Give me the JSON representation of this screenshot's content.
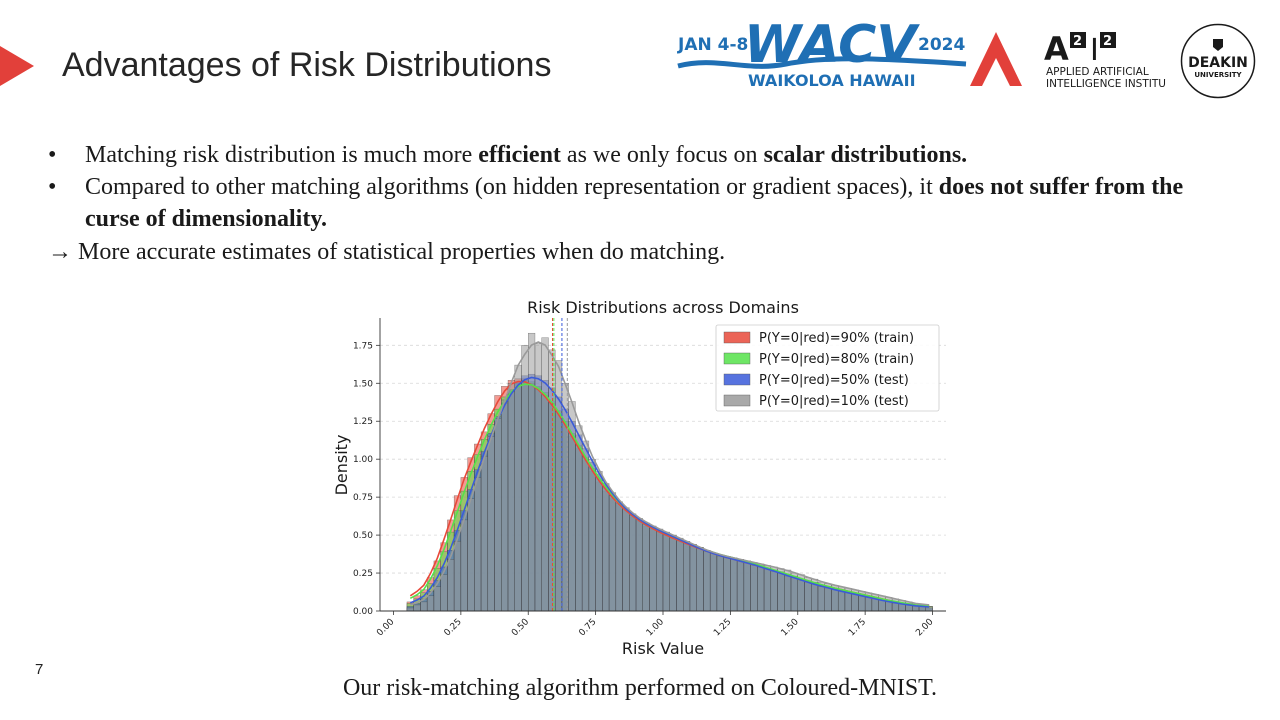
{
  "slide": {
    "title": "Advantages of Risk Distributions",
    "number": "7",
    "caption": "Our risk-matching algorithm performed on Coloured-MNIST."
  },
  "logos": {
    "wacv": {
      "dates": "JAN 4-8",
      "name": "WACV",
      "year": "2024",
      "location": "WAIKOLOA HAWAII"
    },
    "a2i2": {
      "mark": "A",
      "sup1": "2",
      "sep": "I",
      "sup2": "2",
      "line1": "APPLIED ARTIFICIAL",
      "line2": "INTELLIGENCE INSTITUTE"
    },
    "deakin": {
      "line1": "DEAKIN",
      "line2": "UNIVERSITY"
    }
  },
  "bullets": [
    {
      "marker": "•",
      "parts": [
        {
          "text": "Matching risk distribution is much more ",
          "bold": false
        },
        {
          "text": "efficient",
          "bold": true
        },
        {
          "text": " as we only focus on ",
          "bold": false
        },
        {
          "text": "scalar distributions.",
          "bold": true
        }
      ]
    },
    {
      "marker": "•",
      "parts": [
        {
          "text": "Compared to other matching algorithms (on hidden representation or gradient spaces), it ",
          "bold": false
        },
        {
          "text": "does not suffer from the curse of dimensionality.",
          "bold": true
        }
      ]
    }
  ],
  "conclusion": {
    "arrow": "→",
    "text": "More accurate estimates of statistical properties when do matching."
  },
  "colors": {
    "accent": "#e2403a",
    "wacv_blue": "#1f6fb4",
    "red": "#e8493a",
    "green": "#55e24a",
    "blue": "#3a5bd9",
    "gray": "#9a9a9a",
    "overlap": "#4d6f80"
  },
  "chart_data": {
    "type": "bar",
    "title": "Risk Distributions across Domains",
    "xlabel": "Risk Value",
    "ylabel": "Density",
    "xlim": [
      -0.05,
      2.05
    ],
    "ylim": [
      0,
      1.93
    ],
    "xticks": [
      "0.00",
      "0.25",
      "0.50",
      "0.75",
      "1.00",
      "1.25",
      "1.50",
      "1.75",
      "2.00"
    ],
    "yticks": [
      "0.00",
      "0.25",
      "0.50",
      "0.75",
      "1.00",
      "1.25",
      "1.50",
      "1.75"
    ],
    "grid": "horizontal dashed",
    "legend": "top-right",
    "bin_edges_start": 0.05,
    "bin_width": 0.025,
    "series": [
      {
        "name": "P(Y=0|red)=90%  (train)",
        "color": "#e8493a",
        "mean": 0.59,
        "values": [
          0.06,
          0.1,
          0.14,
          0.22,
          0.33,
          0.45,
          0.6,
          0.76,
          0.88,
          1.01,
          1.1,
          1.18,
          1.3,
          1.42,
          1.48,
          1.52,
          1.53,
          1.53,
          1.5,
          1.47,
          1.42,
          1.37,
          1.3,
          1.23,
          1.15,
          1.07,
          0.99,
          0.92,
          0.85,
          0.79,
          0.74,
          0.7,
          0.66,
          0.62,
          0.59,
          0.56,
          0.54,
          0.52,
          0.5,
          0.48,
          0.46,
          0.44,
          0.43,
          0.41,
          0.39,
          0.38,
          0.36,
          0.35,
          0.34,
          0.33,
          0.32,
          0.3,
          0.29,
          0.28,
          0.27,
          0.25,
          0.24,
          0.22,
          0.21,
          0.2,
          0.18,
          0.17,
          0.16,
          0.15,
          0.14,
          0.13,
          0.12,
          0.11,
          0.1,
          0.09,
          0.08,
          0.07,
          0.06,
          0.05,
          0.04,
          0.04,
          0.03,
          0.03
        ]
      },
      {
        "name": "P(Y=0|red)=80% (train)",
        "color": "#55e24a",
        "mean": 0.595,
        "values": [
          0.05,
          0.08,
          0.12,
          0.18,
          0.28,
          0.39,
          0.52,
          0.66,
          0.79,
          0.92,
          1.03,
          1.13,
          1.23,
          1.33,
          1.41,
          1.46,
          1.5,
          1.52,
          1.51,
          1.48,
          1.44,
          1.38,
          1.32,
          1.25,
          1.17,
          1.09,
          1.01,
          0.94,
          0.87,
          0.81,
          0.76,
          0.71,
          0.67,
          0.63,
          0.6,
          0.57,
          0.55,
          0.53,
          0.51,
          0.49,
          0.47,
          0.45,
          0.43,
          0.42,
          0.4,
          0.38,
          0.37,
          0.36,
          0.35,
          0.34,
          0.33,
          0.31,
          0.3,
          0.28,
          0.27,
          0.26,
          0.24,
          0.23,
          0.21,
          0.2,
          0.19,
          0.17,
          0.16,
          0.15,
          0.14,
          0.13,
          0.12,
          0.11,
          0.1,
          0.09,
          0.08,
          0.07,
          0.06,
          0.05,
          0.05,
          0.04,
          0.03,
          0.03
        ]
      },
      {
        "name": "P(Y=0|red)=50% (test)",
        "color": "#3a5bd9",
        "mean": 0.625,
        "values": [
          0.03,
          0.05,
          0.08,
          0.13,
          0.2,
          0.29,
          0.4,
          0.53,
          0.66,
          0.8,
          0.93,
          1.05,
          1.17,
          1.28,
          1.37,
          1.45,
          1.51,
          1.55,
          1.56,
          1.55,
          1.52,
          1.47,
          1.41,
          1.33,
          1.25,
          1.16,
          1.07,
          0.98,
          0.9,
          0.83,
          0.76,
          0.71,
          0.67,
          0.63,
          0.6,
          0.57,
          0.55,
          0.53,
          0.51,
          0.49,
          0.47,
          0.45,
          0.43,
          0.41,
          0.39,
          0.38,
          0.36,
          0.35,
          0.34,
          0.33,
          0.32,
          0.3,
          0.29,
          0.28,
          0.26,
          0.25,
          0.23,
          0.22,
          0.2,
          0.19,
          0.18,
          0.16,
          0.15,
          0.14,
          0.13,
          0.12,
          0.11,
          0.1,
          0.09,
          0.08,
          0.07,
          0.06,
          0.05,
          0.05,
          0.04,
          0.03,
          0.03,
          0.02
        ]
      },
      {
        "name": "P(Y=0|red)=10% (test)",
        "color": "#9a9a9a",
        "mean": 0.645,
        "values": [
          0.02,
          0.04,
          0.06,
          0.1,
          0.16,
          0.24,
          0.34,
          0.46,
          0.6,
          0.74,
          0.88,
          1.02,
          1.15,
          1.27,
          1.39,
          1.5,
          1.62,
          1.75,
          1.83,
          1.76,
          1.8,
          1.72,
          1.65,
          1.5,
          1.38,
          1.22,
          1.12,
          1.0,
          0.92,
          0.84,
          0.78,
          0.72,
          0.68,
          0.64,
          0.61,
          0.58,
          0.56,
          0.54,
          0.52,
          0.5,
          0.48,
          0.46,
          0.44,
          0.42,
          0.4,
          0.38,
          0.37,
          0.36,
          0.35,
          0.34,
          0.33,
          0.32,
          0.31,
          0.3,
          0.29,
          0.28,
          0.27,
          0.25,
          0.24,
          0.22,
          0.21,
          0.19,
          0.18,
          0.17,
          0.16,
          0.15,
          0.14,
          0.13,
          0.12,
          0.11,
          0.1,
          0.09,
          0.08,
          0.07,
          0.06,
          0.05,
          0.04,
          0.03
        ]
      }
    ]
  }
}
